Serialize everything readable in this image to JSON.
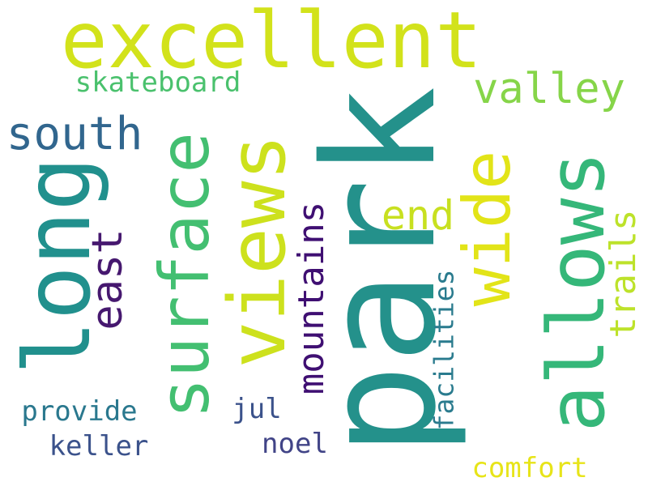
{
  "words": [
    {
      "text": "excellent",
      "color": "#d2e21b"
    },
    {
      "text": "park",
      "color": "#24918b"
    },
    {
      "text": "long",
      "color": "#21908d"
    },
    {
      "text": "surface",
      "color": "#43bf71"
    },
    {
      "text": "views",
      "color": "#cde11d"
    },
    {
      "text": "allows",
      "color": "#35b779"
    },
    {
      "text": "wide",
      "color": "#e2e418"
    },
    {
      "text": "valley",
      "color": "#86d549"
    },
    {
      "text": "south",
      "color": "#31668e"
    },
    {
      "text": "skateboard",
      "color": "#4ac16d"
    },
    {
      "text": "east",
      "color": "#46186f"
    },
    {
      "text": "mountains",
      "color": "#3f0f72"
    },
    {
      "text": "end",
      "color": "#c8e020"
    },
    {
      "text": "trails",
      "color": "#bde22a"
    },
    {
      "text": "facilities",
      "color": "#2a7b8e"
    },
    {
      "text": "provide",
      "color": "#2a788e"
    },
    {
      "text": "keller",
      "color": "#3b528b"
    },
    {
      "text": "jul",
      "color": "#3b528b"
    },
    {
      "text": "noel",
      "color": "#414487"
    },
    {
      "text": "comfort",
      "color": "#e7e419"
    }
  ]
}
